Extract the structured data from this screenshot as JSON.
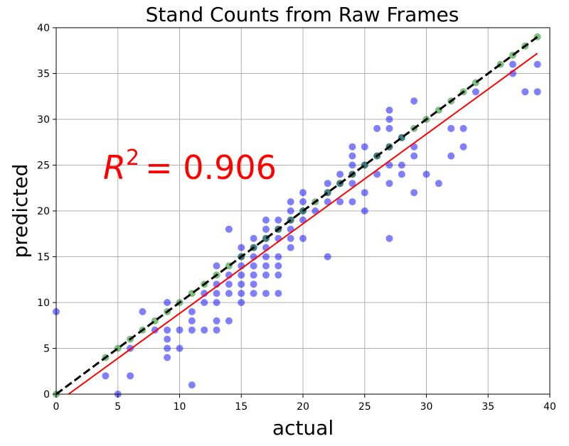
{
  "chart_data": {
    "type": "scatter",
    "title": "Stand Counts from Raw Frames",
    "xlabel": "actual",
    "ylabel": "predicted",
    "xlim": [
      0,
      40
    ],
    "ylim": [
      0,
      40
    ],
    "xticks": [
      0,
      5,
      10,
      15,
      20,
      25,
      30,
      35,
      40
    ],
    "yticks": [
      0,
      5,
      10,
      15,
      20,
      25,
      30,
      35,
      40
    ],
    "grid": true,
    "annotation": {
      "base": "R",
      "exponent": "2",
      "text": "= 0.906"
    },
    "series": [
      {
        "role": "all predictions",
        "color": "#0000ff",
        "points": [
          [
            0,
            9
          ],
          [
            4,
            2
          ],
          [
            5,
            0
          ],
          [
            6,
            2
          ],
          [
            6,
            5
          ],
          [
            7,
            9
          ],
          [
            8,
            7
          ],
          [
            9,
            4
          ],
          [
            9,
            5
          ],
          [
            9,
            6
          ],
          [
            9,
            7
          ],
          [
            9,
            10
          ],
          [
            10,
            5
          ],
          [
            10,
            7
          ],
          [
            11,
            1
          ],
          [
            11,
            7
          ],
          [
            11,
            8
          ],
          [
            11,
            9
          ],
          [
            12,
            7
          ],
          [
            12,
            10
          ],
          [
            12,
            11
          ],
          [
            13,
            7
          ],
          [
            13,
            8
          ],
          [
            13,
            10
          ],
          [
            13,
            11
          ],
          [
            13,
            12
          ],
          [
            13,
            14
          ],
          [
            14,
            8
          ],
          [
            14,
            11
          ],
          [
            14,
            12
          ],
          [
            14,
            13
          ],
          [
            14,
            18
          ],
          [
            15,
            10
          ],
          [
            15,
            11
          ],
          [
            15,
            12
          ],
          [
            15,
            13
          ],
          [
            15,
            14
          ],
          [
            15,
            15
          ],
          [
            15,
            16
          ],
          [
            16,
            11
          ],
          [
            16,
            12
          ],
          [
            16,
            13
          ],
          [
            16,
            14
          ],
          [
            16,
            15
          ],
          [
            16,
            16
          ],
          [
            16,
            17
          ],
          [
            17,
            11
          ],
          [
            17,
            13
          ],
          [
            17,
            14
          ],
          [
            17,
            15
          ],
          [
            17,
            16
          ],
          [
            17,
            17
          ],
          [
            17,
            18
          ],
          [
            17,
            19
          ],
          [
            18,
            11
          ],
          [
            18,
            13
          ],
          [
            18,
            14
          ],
          [
            18,
            15
          ],
          [
            18,
            17
          ],
          [
            18,
            18
          ],
          [
            18,
            19
          ],
          [
            19,
            16
          ],
          [
            19,
            17
          ],
          [
            19,
            18
          ],
          [
            19,
            19
          ],
          [
            19,
            20
          ],
          [
            19,
            21
          ],
          [
            20,
            17
          ],
          [
            20,
            19
          ],
          [
            20,
            20
          ],
          [
            20,
            21
          ],
          [
            20,
            22
          ],
          [
            21,
            20
          ],
          [
            22,
            15
          ],
          [
            22,
            21
          ],
          [
            22,
            22
          ],
          [
            22,
            23
          ],
          [
            23,
            21
          ],
          [
            23,
            23
          ],
          [
            23,
            24
          ],
          [
            24,
            21
          ],
          [
            24,
            23
          ],
          [
            24,
            24
          ],
          [
            24,
            25
          ],
          [
            24,
            26
          ],
          [
            24,
            27
          ],
          [
            25,
            20
          ],
          [
            25,
            22
          ],
          [
            25,
            25
          ],
          [
            25,
            27
          ],
          [
            26,
            24
          ],
          [
            26,
            26
          ],
          [
            26,
            29
          ],
          [
            27,
            17
          ],
          [
            27,
            23
          ],
          [
            27,
            25
          ],
          [
            27,
            27
          ],
          [
            27,
            29
          ],
          [
            27,
            30
          ],
          [
            27,
            31
          ],
          [
            28,
            24
          ],
          [
            28,
            25
          ],
          [
            28,
            28
          ],
          [
            29,
            22
          ],
          [
            29,
            26
          ],
          [
            29,
            27
          ],
          [
            29,
            32
          ],
          [
            30,
            24
          ],
          [
            31,
            23
          ],
          [
            32,
            26
          ],
          [
            32,
            29
          ],
          [
            33,
            27
          ],
          [
            33,
            29
          ],
          [
            34,
            33
          ],
          [
            37,
            35
          ],
          [
            37,
            36
          ],
          [
            38,
            33
          ],
          [
            39,
            33
          ],
          [
            39,
            36
          ]
        ]
      },
      {
        "role": "exact matches",
        "color": "#008000",
        "points": [
          [
            0,
            0
          ],
          [
            4,
            4
          ],
          [
            5,
            5
          ],
          [
            6,
            6
          ],
          [
            7,
            7
          ],
          [
            8,
            8
          ],
          [
            9,
            9
          ],
          [
            10,
            10
          ],
          [
            11,
            11
          ],
          [
            12,
            12
          ],
          [
            13,
            13
          ],
          [
            14,
            14
          ],
          [
            15,
            15
          ],
          [
            16,
            16
          ],
          [
            17,
            17
          ],
          [
            18,
            18
          ],
          [
            19,
            19
          ],
          [
            20,
            20
          ],
          [
            21,
            21
          ],
          [
            22,
            22
          ],
          [
            23,
            23
          ],
          [
            24,
            24
          ],
          [
            25,
            25
          ],
          [
            26,
            26
          ],
          [
            27,
            27
          ],
          [
            28,
            28
          ],
          [
            29,
            29
          ],
          [
            30,
            30
          ],
          [
            31,
            31
          ],
          [
            32,
            32
          ],
          [
            33,
            33
          ],
          [
            34,
            34
          ],
          [
            36,
            36
          ],
          [
            37,
            37
          ],
          [
            38,
            38
          ],
          [
            39,
            39
          ]
        ]
      }
    ],
    "lines": [
      {
        "role": "identity",
        "color": "#000000",
        "style": "dashed",
        "x": [
          0,
          39
        ],
        "y": [
          0,
          39
        ]
      },
      {
        "role": "fit",
        "color": "#ff0000",
        "style": "solid",
        "x": [
          1,
          39
        ],
        "y": [
          0,
          37.2
        ]
      }
    ]
  }
}
